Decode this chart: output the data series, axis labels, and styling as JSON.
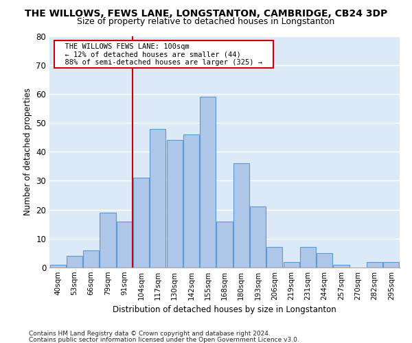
{
  "title": "THE WILLOWS, FEWS LANE, LONGSTANTON, CAMBRIDGE, CB24 3DP",
  "subtitle": "Size of property relative to detached houses in Longstanton",
  "xlabel": "Distribution of detached houses by size in Longstanton",
  "ylabel": "Number of detached properties",
  "footnote1": "Contains HM Land Registry data © Crown copyright and database right 2024.",
  "footnote2": "Contains public sector information licensed under the Open Government Licence v3.0.",
  "bar_labels": [
    "40sqm",
    "53sqm",
    "66sqm",
    "79sqm",
    "91sqm",
    "104sqm",
    "117sqm",
    "130sqm",
    "142sqm",
    "155sqm",
    "168sqm",
    "180sqm",
    "193sqm",
    "206sqm",
    "219sqm",
    "231sqm",
    "244sqm",
    "257sqm",
    "270sqm",
    "282sqm",
    "295sqm"
  ],
  "bar_values": [
    1,
    4,
    6,
    19,
    16,
    31,
    48,
    44,
    46,
    59,
    16,
    36,
    21,
    7,
    2,
    7,
    5,
    1,
    0,
    2,
    2
  ],
  "bar_color": "#aec6e8",
  "bar_edge_color": "#5b9bd5",
  "background_color": "#dce9f7",
  "grid_color": "#ffffff",
  "ref_line_x": 4.5,
  "ref_line_color": "#cc0000",
  "annotation_text": "  THE WILLOWS FEWS LANE: 100sqm  \n  ← 12% of detached houses are smaller (44)  \n  88% of semi-detached houses are larger (325) →  ",
  "annotation_box_color": "#cc0000",
  "ylim": [
    0,
    80
  ],
  "yticks": [
    0,
    10,
    20,
    30,
    40,
    50,
    60,
    70,
    80
  ]
}
